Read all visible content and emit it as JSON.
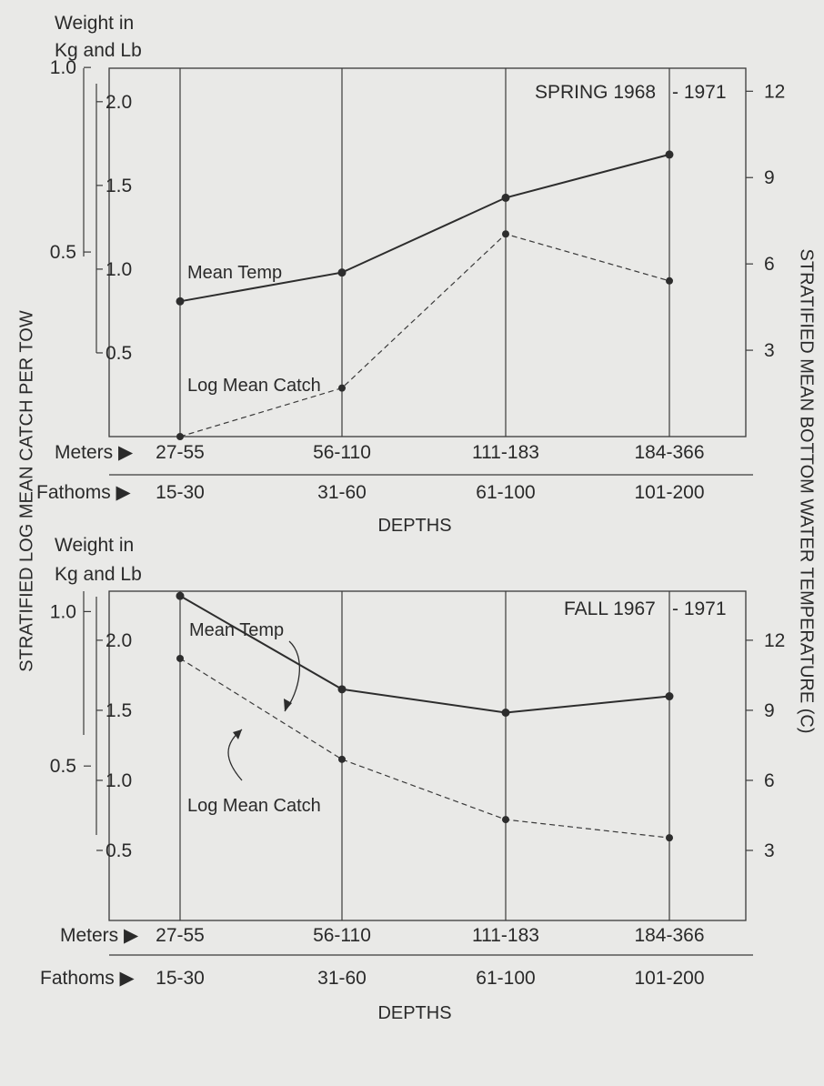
{
  "left_axis_title": "STRATIFIED LOG MEAN CATCH PER TOW",
  "right_axis_title": "STRATIFIED MEAN BOTTOM WATER TEMPERATURE (C)",
  "weight_label_line1": "Weight  in",
  "weight_label_line2": "Kg and Lb",
  "meters_label": "Meters ▶",
  "fathoms_label": "Fathoms ▶",
  "depths_label": "DEPTHS",
  "colors": {
    "background": "#e9e9e7",
    "ink": "#2d2d2d"
  },
  "chart_data": [
    {
      "type": "line",
      "title": "SPRING 1968 - 1971",
      "title_left": "SPRING 1968",
      "title_right": "- 1971",
      "xlabel": "DEPTHS",
      "categories_meters": [
        "27-55",
        "56-110",
        "111-183",
        "184-366"
      ],
      "categories_fathoms": [
        "15-30",
        "31-60",
        "61-100",
        "101-200"
      ],
      "kg_ticks": [
        {
          "value": 1.0,
          "label": "1.0"
        },
        {
          "value": 0.5,
          "label": "0.5"
        }
      ],
      "lb_ticks": [
        {
          "value": 2.0,
          "label": "2.0"
        },
        {
          "value": 1.5,
          "label": "1.5"
        },
        {
          "value": 1.0,
          "label": "1.0"
        },
        {
          "value": 0.5,
          "label": "0.5"
        }
      ],
      "temp_ticks": [
        {
          "value": 12,
          "label": "12"
        },
        {
          "value": 9,
          "label": "9"
        },
        {
          "value": 6,
          "label": "6"
        },
        {
          "value": 3,
          "label": "3"
        }
      ],
      "lb_range": [
        0.0,
        2.2
      ],
      "temp_range": [
        0,
        12.8
      ],
      "grid": "vertical",
      "series": [
        {
          "name": "Mean Temp",
          "axis": "temp",
          "style": "solid",
          "values": [
            4.7,
            5.7,
            8.3,
            9.8
          ]
        },
        {
          "name": "Log Mean Catch",
          "axis": "lb",
          "style": "dashed",
          "values": [
            0.0,
            0.29,
            1.21,
            0.93
          ]
        }
      ],
      "annotations": [
        {
          "text": "Mean Temp",
          "series": 0
        },
        {
          "text": "Log Mean Catch",
          "series": 1
        }
      ]
    },
    {
      "type": "line",
      "title": "FALL 1967 - 1971",
      "title_left": "FALL 1967",
      "title_right": "- 1971",
      "xlabel": "DEPTHS",
      "categories_meters": [
        "27-55",
        "56-110",
        "111-183",
        "184-366"
      ],
      "categories_fathoms": [
        "15-30",
        "31-60",
        "61-100",
        "101-200"
      ],
      "kg_ticks": [
        {
          "value": 1.0,
          "label": "1.0"
        },
        {
          "value": 0.5,
          "label": "0.5"
        }
      ],
      "lb_ticks": [
        {
          "value": 2.0,
          "label": "2.0"
        },
        {
          "value": 1.5,
          "label": "1.5"
        },
        {
          "value": 1.0,
          "label": "1.0"
        },
        {
          "value": 0.5,
          "label": "0.5"
        }
      ],
      "temp_ticks": [
        {
          "value": 12,
          "label": "12"
        },
        {
          "value": 9,
          "label": "9"
        },
        {
          "value": 6,
          "label": "6"
        },
        {
          "value": 3,
          "label": "3"
        }
      ],
      "lb_range": [
        0.0,
        2.35
      ],
      "temp_range": [
        0,
        14.1
      ],
      "grid": "vertical",
      "series": [
        {
          "name": "Mean Temp",
          "axis": "temp",
          "style": "solid",
          "values": [
            13.9,
            9.9,
            8.9,
            9.6
          ]
        },
        {
          "name": "Log Mean Catch",
          "axis": "lb",
          "style": "dashed",
          "values": [
            1.87,
            1.15,
            0.72,
            0.59
          ]
        }
      ],
      "annotations": [
        {
          "text": "Mean Temp",
          "series": 0
        },
        {
          "text": "Log Mean Catch",
          "series": 1
        }
      ]
    }
  ]
}
